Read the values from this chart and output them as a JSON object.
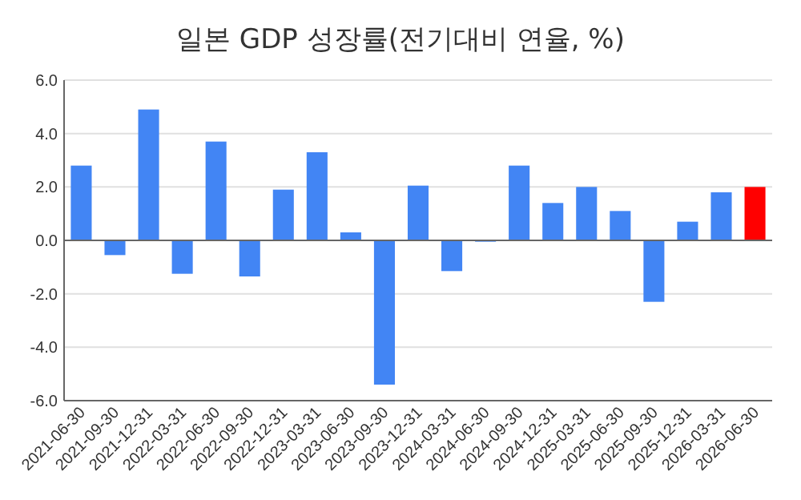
{
  "chart_data": {
    "type": "bar",
    "title": "일본 GDP 성장률(전기대비 연율, %)",
    "categories": [
      "2021-06-30",
      "2021-09-30",
      "2021-12-31",
      "2022-03-31",
      "2022-06-30",
      "2022-09-30",
      "2022-12-31",
      "2023-03-31",
      "2023-06-30",
      "2023-09-30",
      "2023-12-31",
      "2024-03-31",
      "2024-06-30",
      "2024-09-30",
      "2024-12-31",
      "2025-03-31",
      "2025-06-30",
      "2025-09-30",
      "2025-12-31",
      "2026-03-31",
      "2026-06-30"
    ],
    "values": [
      2.8,
      -0.55,
      4.9,
      -1.25,
      3.7,
      -1.35,
      1.9,
      3.3,
      0.3,
      -5.4,
      2.05,
      -1.15,
      -0.05,
      2.8,
      1.4,
      2.0,
      1.1,
      -2.3,
      0.7,
      1.8,
      2.0
    ],
    "colors": [
      "#4285f4",
      "#4285f4",
      "#4285f4",
      "#4285f4",
      "#4285f4",
      "#4285f4",
      "#4285f4",
      "#4285f4",
      "#4285f4",
      "#4285f4",
      "#4285f4",
      "#4285f4",
      "#4285f4",
      "#4285f4",
      "#4285f4",
      "#4285f4",
      "#4285f4",
      "#4285f4",
      "#4285f4",
      "#4285f4",
      "#ff0000"
    ],
    "ylim": [
      -6,
      6
    ],
    "yticks": [
      {
        "value": -6,
        "label": "-6.0"
      },
      {
        "value": -4,
        "label": "-4.0"
      },
      {
        "value": -2,
        "label": "-2.0"
      },
      {
        "value": 0,
        "label": "0.0"
      },
      {
        "value": 2,
        "label": "2.0"
      },
      {
        "value": 4,
        "label": "4.0"
      },
      {
        "value": 6,
        "label": "6.0"
      }
    ],
    "grid": "y"
  }
}
